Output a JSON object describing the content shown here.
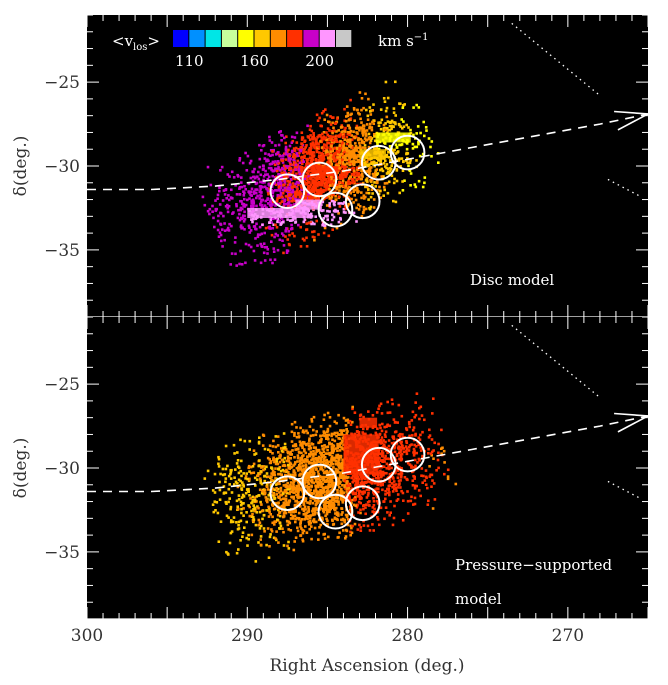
{
  "chart_data": {
    "type": "scatter",
    "xlabel": "Right Ascension (deg.)",
    "ylabel": "δ(deg.)",
    "xlim": [
      300,
      265
    ],
    "ylim": [
      -39,
      -21
    ],
    "x_ticks": [
      300,
      290,
      280,
      270
    ],
    "x_tick_labels": [
      "300",
      "290",
      "280",
      "270"
    ],
    "y_ticks": [
      -25,
      -30,
      -35
    ],
    "y_tick_labels": [
      "−25",
      "−30",
      "−35"
    ],
    "legend": {
      "prefix": "<v",
      "subscript": "los",
      "suffix": ">",
      "unit_prefix": "km s",
      "unit_exponent": "−1",
      "colors": [
        "#0000ff",
        "#0090ff",
        "#00e6e6",
        "#c8ff9c",
        "#ffff00",
        "#ffc800",
        "#ff8c00",
        "#ff3000",
        "#c800c8",
        "#ff96ff",
        "#c8c8c8"
      ],
      "tick_labels": [
        "110",
        "160",
        "200"
      ],
      "tick_index": [
        1,
        5,
        9
      ]
    },
    "panels": [
      {
        "label_lines": [
          "Disc model"
        ],
        "cloud": {
          "center": [
            285.5,
            -30.5
          ],
          "semi_major": 14,
          "semi_minor": 3.3,
          "angle_deg": 25
        },
        "gradient": [
          {
            "ra": 295,
            "color": "#c800c8"
          },
          {
            "ra": 289,
            "color": "#c800c8"
          },
          {
            "ra": 286,
            "color": "#ff3000"
          },
          {
            "ra": 283,
            "color": "#ff8c00"
          },
          {
            "ra": 281,
            "color": "#ffc800"
          },
          {
            "ra": 279,
            "color": "#ffff00"
          },
          {
            "ra": 272,
            "color": "#ffff00"
          }
        ],
        "patches": [
          {
            "ra": [
              290,
              283
            ],
            "dec": [
              -33.5,
              -32.5
            ],
            "color": "#ff96ff"
          },
          {
            "ra": [
              287,
              284
            ],
            "dec": [
              -33.0,
              -32.0
            ],
            "color": "#ff96ff"
          },
          {
            "ra": [
              286,
              283
            ],
            "dec": [
              -31,
              -30
            ],
            "color": "#ff3000"
          },
          {
            "ra": [
              283,
              280
            ],
            "dec": [
              -30,
              -29
            ],
            "color": "#ffc800"
          },
          {
            "ra": [
              282,
              278
            ],
            "dec": [
              -29,
              -28
            ],
            "color": "#ffff00"
          }
        ]
      },
      {
        "label_lines": [
          "Pressure−supported",
          "model"
        ],
        "cloud": {
          "center": [
            285.0,
            -30.5
          ],
          "semi_major": 14.5,
          "semi_minor": 3.6,
          "angle_deg": 14
        },
        "gradient": [
          {
            "ra": 298,
            "color": "#ffff00"
          },
          {
            "ra": 294,
            "color": "#ffc800"
          },
          {
            "ra": 291,
            "color": "#ffc800"
          },
          {
            "ra": 287,
            "color": "#ff8c00"
          },
          {
            "ra": 284,
            "color": "#ff8c00"
          },
          {
            "ra": 283,
            "color": "#ff3000"
          },
          {
            "ra": 279,
            "color": "#ff3000"
          },
          {
            "ra": 277,
            "color": "#ff8c00"
          },
          {
            "ra": 272,
            "color": "#ff8c00"
          }
        ],
        "patches": [
          {
            "ra": [
              284,
              280
            ],
            "dec": [
              -32,
              -28
            ],
            "color": "#ff3000"
          },
          {
            "ra": [
              283,
              281
            ],
            "dec": [
              -28,
              -27
            ],
            "color": "#ff3000"
          }
        ]
      }
    ],
    "circles": [
      {
        "ra": 287.5,
        "dec": -31.5
      },
      {
        "ra": 285.5,
        "dec": -30.8
      },
      {
        "ra": 284.5,
        "dec": -32.6
      },
      {
        "ra": 282.8,
        "dec": -32.1
      },
      {
        "ra": 281.8,
        "dec": -29.8
      },
      {
        "ra": 280.0,
        "dec": -29.2
      }
    ],
    "circle_radius_deg": 1.05,
    "dashed_path": [
      [
        300,
        -31.4
      ],
      [
        296,
        -31.4
      ],
      [
        292,
        -31.2
      ],
      [
        288,
        -30.8
      ],
      [
        284,
        -30.3
      ],
      [
        280,
        -29.6
      ],
      [
        276,
        -28.9
      ],
      [
        272,
        -28.2
      ],
      [
        268,
        -27.5
      ],
      [
        265,
        -26.9
      ]
    ],
    "dotted_lines": [
      [
        [
          273.5,
          -21.5
        ],
        [
          268,
          -25.8
        ]
      ],
      [
        [
          267.5,
          -30.8
        ],
        [
          265.5,
          -31.8
        ]
      ]
    ]
  }
}
